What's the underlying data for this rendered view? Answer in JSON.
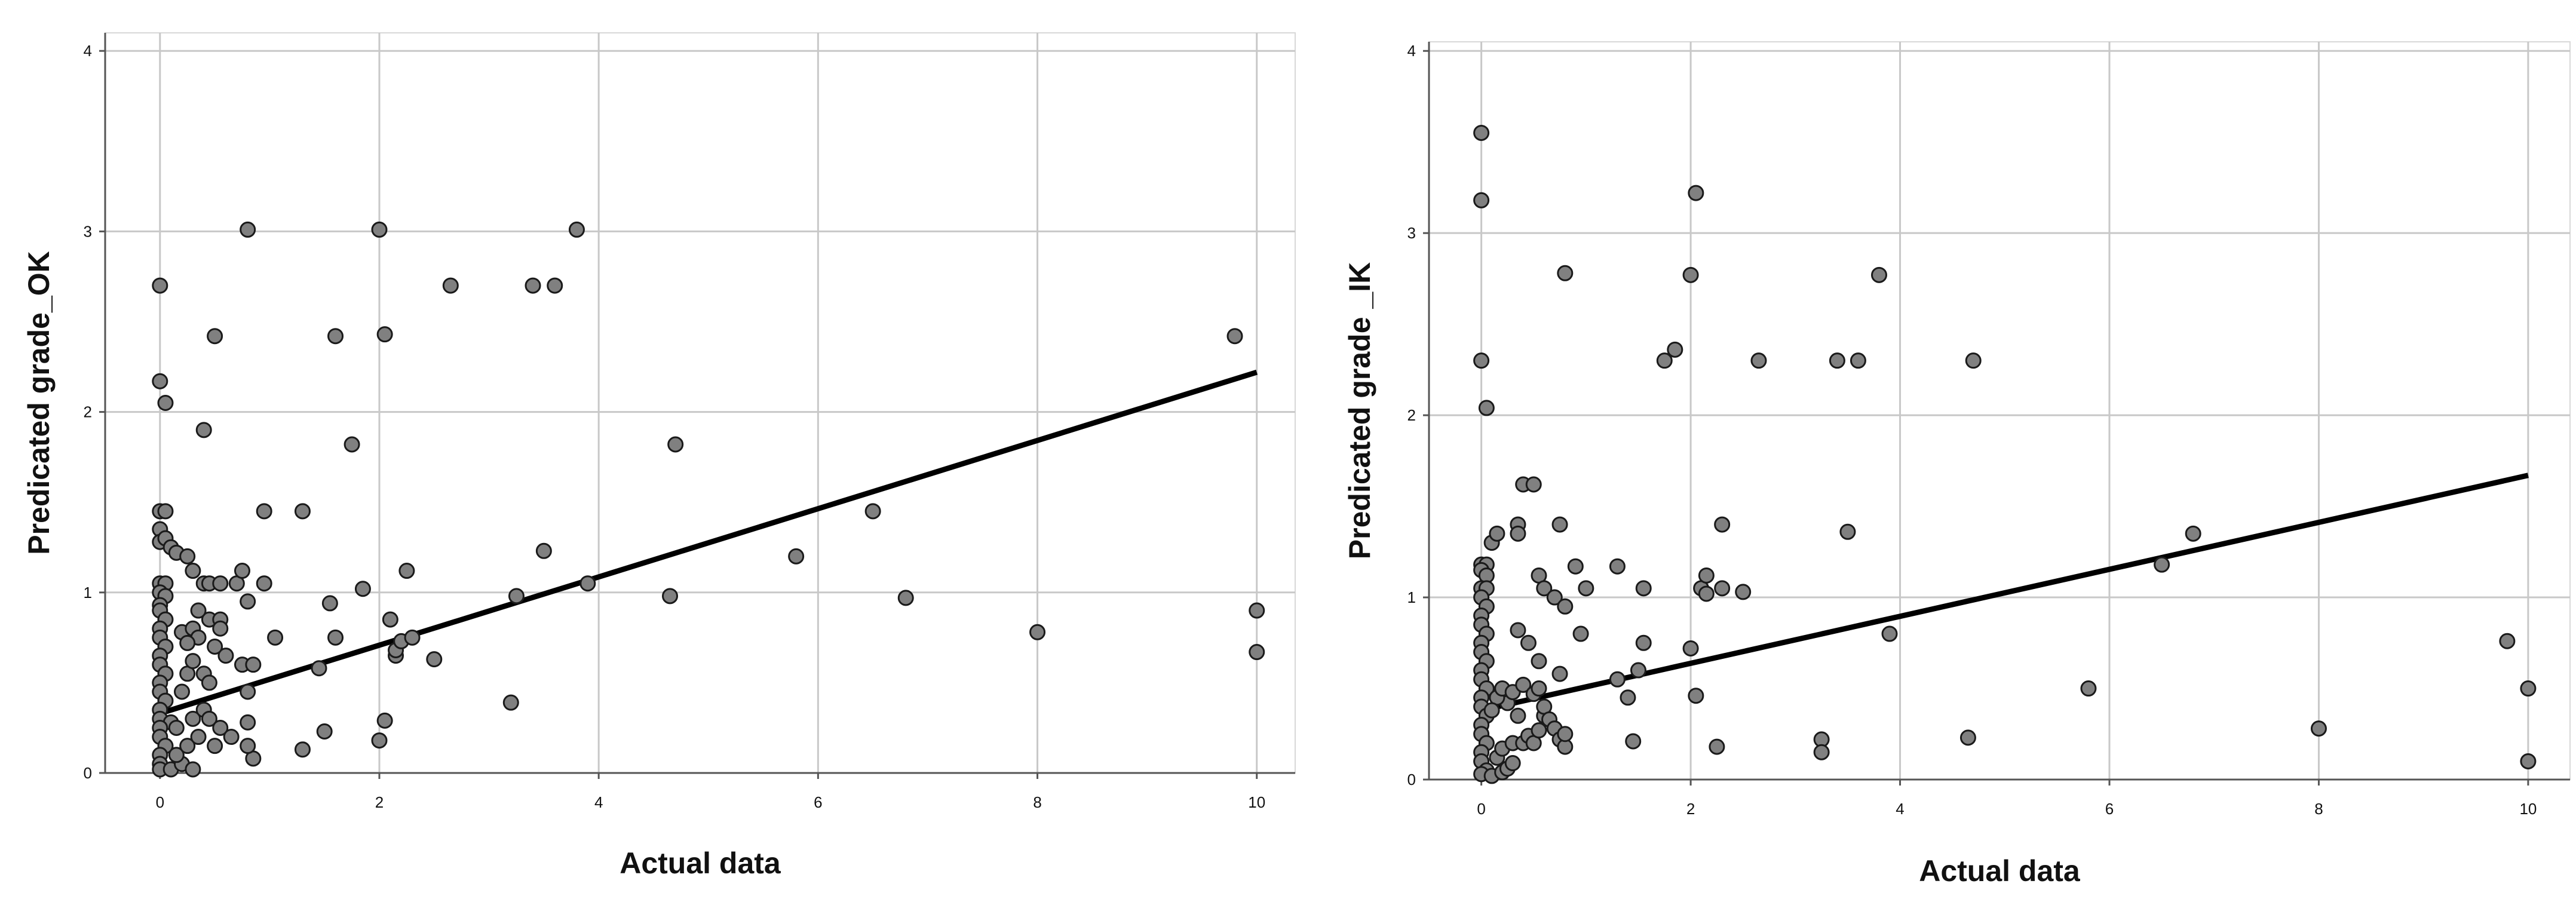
{
  "chart_data": [
    {
      "type": "scatter",
      "ylabel": "Predicated grade_OK",
      "xlabel": "Actual data",
      "xlim": [
        -0.5,
        10.35
      ],
      "ylim": [
        0,
        4.1
      ],
      "xticks": [
        0,
        2,
        4,
        6,
        8,
        10
      ],
      "yticks": [
        0,
        1,
        2,
        3,
        4
      ],
      "grid": true,
      "point_color": "#808080",
      "trendline": {
        "x": [
          0,
          10
        ],
        "y": [
          0.33,
          2.22
        ]
      },
      "points": [
        [
          0,
          2.7
        ],
        [
          0,
          2.17
        ],
        [
          0.05,
          2.05
        ],
        [
          0,
          1.45
        ],
        [
          0.05,
          1.45
        ],
        [
          0,
          1.35
        ],
        [
          0,
          1.28
        ],
        [
          0.05,
          1.3
        ],
        [
          0.1,
          1.25
        ],
        [
          0.15,
          1.22
        ],
        [
          0.25,
          1.2
        ],
        [
          0.3,
          1.12
        ],
        [
          0,
          1.05
        ],
        [
          0.05,
          1.05
        ],
        [
          0,
          1.0
        ],
        [
          0.05,
          0.98
        ],
        [
          0,
          0.93
        ],
        [
          0,
          0.9
        ],
        [
          0.05,
          0.85
        ],
        [
          0,
          0.8
        ],
        [
          0,
          0.75
        ],
        [
          0.05,
          0.7
        ],
        [
          0,
          0.65
        ],
        [
          0,
          0.6
        ],
        [
          0.05,
          0.55
        ],
        [
          0,
          0.5
        ],
        [
          0,
          0.45
        ],
        [
          0.05,
          0.4
        ],
        [
          0,
          0.35
        ],
        [
          0,
          0.3
        ],
        [
          0.1,
          0.28
        ],
        [
          0,
          0.25
        ],
        [
          0,
          0.2
        ],
        [
          0.05,
          0.15
        ],
        [
          0,
          0.1
        ],
        [
          0,
          0.05
        ],
        [
          0,
          0.02
        ],
        [
          0.1,
          0.02
        ],
        [
          0.2,
          0.05
        ],
        [
          0.3,
          0.02
        ],
        [
          0.15,
          0.1
        ],
        [
          0.25,
          0.15
        ],
        [
          0.35,
          0.2
        ],
        [
          0.15,
          0.25
        ],
        [
          0.3,
          0.3
        ],
        [
          0.4,
          0.35
        ],
        [
          0.45,
          0.3
        ],
        [
          0.2,
          0.45
        ],
        [
          0.25,
          0.55
        ],
        [
          0.3,
          0.62
        ],
        [
          0.2,
          0.78
        ],
        [
          0.3,
          0.8
        ],
        [
          0.35,
          0.75
        ],
        [
          0.25,
          0.72
        ],
        [
          0.45,
          0.85
        ],
        [
          0.55,
          0.85
        ],
        [
          0.35,
          0.9
        ],
        [
          0.4,
          1.05
        ],
        [
          0.45,
          1.05
        ],
        [
          0.55,
          1.05
        ],
        [
          0.4,
          0.55
        ],
        [
          0.45,
          0.5
        ],
        [
          0.6,
          0.65
        ],
        [
          0.5,
          0.7
        ],
        [
          0.55,
          0.8
        ],
        [
          0.7,
          1.05
        ],
        [
          0.75,
          1.12
        ],
        [
          0.8,
          0.95
        ],
        [
          0.75,
          0.6
        ],
        [
          0.85,
          0.6
        ],
        [
          0.8,
          0.45
        ],
        [
          0.55,
          0.25
        ],
        [
          0.65,
          0.2
        ],
        [
          0.5,
          0.15
        ],
        [
          0.8,
          0.28
        ],
        [
          0.85,
          0.08
        ],
        [
          0.8,
          0.15
        ],
        [
          0.4,
          1.9
        ],
        [
          0.5,
          2.42
        ],
        [
          0.8,
          3.01
        ],
        [
          0.95,
          1.45
        ],
        [
          0.95,
          1.05
        ],
        [
          1.05,
          0.75
        ],
        [
          1.3,
          1.45
        ],
        [
          1.3,
          0.13
        ],
        [
          1.45,
          0.58
        ],
        [
          1.5,
          0.23
        ],
        [
          1.55,
          0.94
        ],
        [
          1.6,
          0.75
        ],
        [
          1.6,
          2.42
        ],
        [
          1.75,
          1.82
        ],
        [
          1.85,
          1.02
        ],
        [
          2,
          3.01
        ],
        [
          2.05,
          0.29
        ],
        [
          2,
          0.18
        ],
        [
          2.05,
          2.43
        ],
        [
          2.1,
          0.85
        ],
        [
          2.15,
          0.65
        ],
        [
          2.15,
          0.68
        ],
        [
          2.2,
          0.73
        ],
        [
          2.25,
          1.12
        ],
        [
          2.3,
          0.75
        ],
        [
          2.5,
          0.63
        ],
        [
          2.65,
          2.7
        ],
        [
          3.2,
          0.39
        ],
        [
          3.25,
          0.98
        ],
        [
          3.4,
          2.7
        ],
        [
          3.5,
          1.23
        ],
        [
          3.6,
          2.7
        ],
        [
          3.8,
          3.01
        ],
        [
          3.9,
          1.05
        ],
        [
          4.65,
          0.98
        ],
        [
          4.7,
          1.82
        ],
        [
          5.8,
          1.2
        ],
        [
          6.5,
          1.45
        ],
        [
          6.8,
          0.97
        ],
        [
          8,
          0.78
        ],
        [
          9.8,
          2.42
        ],
        [
          10,
          0.9
        ],
        [
          10,
          0.67
        ]
      ]
    },
    {
      "type": "scatter",
      "ylabel": "Predicated grade _IK",
      "xlabel": "Actual data",
      "xlim": [
        -0.5,
        10.4
      ],
      "ylim": [
        0,
        4.05
      ],
      "xticks": [
        0,
        2,
        4,
        6,
        8,
        10
      ],
      "yticks": [
        0,
        1,
        2,
        3,
        4
      ],
      "grid": true,
      "point_color": "#808080",
      "trendline": {
        "x": [
          0,
          10
        ],
        "y": [
          0.38,
          1.67
        ]
      },
      "points": [
        [
          0,
          3.55
        ],
        [
          0,
          3.18
        ],
        [
          0,
          2.3
        ],
        [
          0.05,
          2.04
        ],
        [
          0,
          1.18
        ],
        [
          0.05,
          1.18
        ],
        [
          0,
          1.15
        ],
        [
          0.05,
          1.12
        ],
        [
          0,
          1.05
        ],
        [
          0.05,
          1.05
        ],
        [
          0,
          1.0
        ],
        [
          0.05,
          0.95
        ],
        [
          0,
          0.9
        ],
        [
          0,
          0.85
        ],
        [
          0.05,
          0.8
        ],
        [
          0,
          0.75
        ],
        [
          0,
          0.7
        ],
        [
          0.05,
          0.65
        ],
        [
          0,
          0.6
        ],
        [
          0,
          0.55
        ],
        [
          0.05,
          0.5
        ],
        [
          0,
          0.45
        ],
        [
          0,
          0.4
        ],
        [
          0.05,
          0.35
        ],
        [
          0,
          0.3
        ],
        [
          0,
          0.25
        ],
        [
          0.05,
          0.2
        ],
        [
          0,
          0.15
        ],
        [
          0,
          0.1
        ],
        [
          0.05,
          0.05
        ],
        [
          0,
          0.03
        ],
        [
          0.1,
          0.02
        ],
        [
          0.2,
          0.04
        ],
        [
          0.25,
          0.06
        ],
        [
          0.3,
          0.09
        ],
        [
          0.15,
          0.12
        ],
        [
          0.2,
          0.17
        ],
        [
          0.3,
          0.2
        ],
        [
          0.4,
          0.2
        ],
        [
          0.45,
          0.24
        ],
        [
          0.5,
          0.2
        ],
        [
          0.55,
          0.27
        ],
        [
          0.6,
          0.35
        ],
        [
          0.35,
          0.35
        ],
        [
          0.25,
          0.42
        ],
        [
          0.15,
          0.45
        ],
        [
          0.1,
          0.38
        ],
        [
          0.2,
          0.5
        ],
        [
          0.3,
          0.48
        ],
        [
          0.4,
          0.52
        ],
        [
          0.5,
          0.47
        ],
        [
          0.55,
          0.5
        ],
        [
          0.6,
          0.4
        ],
        [
          0.65,
          0.33
        ],
        [
          0.7,
          0.28
        ],
        [
          0.75,
          0.22
        ],
        [
          0.8,
          0.18
        ],
        [
          0.8,
          0.25
        ],
        [
          0.1,
          1.3
        ],
        [
          0.15,
          1.35
        ],
        [
          0.35,
          1.4
        ],
        [
          0.35,
          1.35
        ],
        [
          0.4,
          1.62
        ],
        [
          0.5,
          1.62
        ],
        [
          0.55,
          1.12
        ],
        [
          0.6,
          1.05
        ],
        [
          0.7,
          1.0
        ],
        [
          0.75,
          1.4
        ],
        [
          0.8,
          0.95
        ],
        [
          0.75,
          0.58
        ],
        [
          0.35,
          0.82
        ],
        [
          0.45,
          0.75
        ],
        [
          0.55,
          0.65
        ],
        [
          0.8,
          2.78
        ],
        [
          0.9,
          1.17
        ],
        [
          0.95,
          0.8
        ],
        [
          1.0,
          1.05
        ],
        [
          1.3,
          1.17
        ],
        [
          1.3,
          0.55
        ],
        [
          1.4,
          0.45
        ],
        [
          1.45,
          0.21
        ],
        [
          1.5,
          0.6
        ],
        [
          1.55,
          0.75
        ],
        [
          1.55,
          1.05
        ],
        [
          1.75,
          2.3
        ],
        [
          1.85,
          2.36
        ],
        [
          2,
          2.77
        ],
        [
          2.05,
          3.22
        ],
        [
          2,
          0.72
        ],
        [
          2.05,
          0.46
        ],
        [
          2.1,
          1.05
        ],
        [
          2.15,
          1.12
        ],
        [
          2.15,
          1.02
        ],
        [
          2.25,
          0.18
        ],
        [
          2.3,
          1.4
        ],
        [
          2.3,
          1.05
        ],
        [
          2.5,
          1.03
        ],
        [
          2.65,
          2.3
        ],
        [
          3.25,
          0.22
        ],
        [
          3.25,
          0.15
        ],
        [
          3.4,
          2.3
        ],
        [
          3.5,
          1.36
        ],
        [
          3.6,
          2.3
        ],
        [
          3.8,
          2.77
        ],
        [
          3.9,
          0.8
        ],
        [
          4.65,
          0.23
        ],
        [
          4.7,
          2.3
        ],
        [
          5.8,
          0.5
        ],
        [
          6.5,
          1.18
        ],
        [
          6.8,
          1.35
        ],
        [
          8,
          0.28
        ],
        [
          9.8,
          0.76
        ],
        [
          10,
          0.5
        ],
        [
          10,
          0.1
        ]
      ]
    }
  ]
}
